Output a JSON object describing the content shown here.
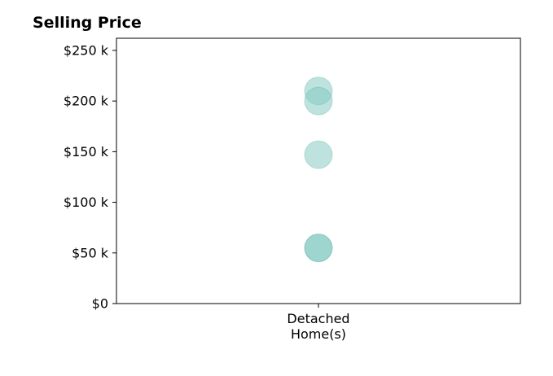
{
  "chart_data": {
    "type": "scatter",
    "title": "Selling Price",
    "xlabel": "",
    "ylabel": "",
    "categories": [
      "Detached\nHome(s)"
    ],
    "ylim": [
      0,
      262000
    ],
    "yticks": [
      {
        "value": 0,
        "label": "$0"
      },
      {
        "value": 50000,
        "label": "$50 k"
      },
      {
        "value": 100000,
        "label": "$100 k"
      },
      {
        "value": 150000,
        "label": "$150 k"
      },
      {
        "value": 200000,
        "label": "$200 k"
      },
      {
        "value": 250000,
        "label": "$250 k"
      }
    ],
    "series": [
      {
        "category": "Detached\nHome(s)",
        "values": [
          210000,
          200000,
          147000,
          55000,
          55000
        ]
      }
    ],
    "marker_color": "#7ec8bd",
    "marker_edge_color": "#5fb3a6",
    "grid": false,
    "legend": "none"
  }
}
